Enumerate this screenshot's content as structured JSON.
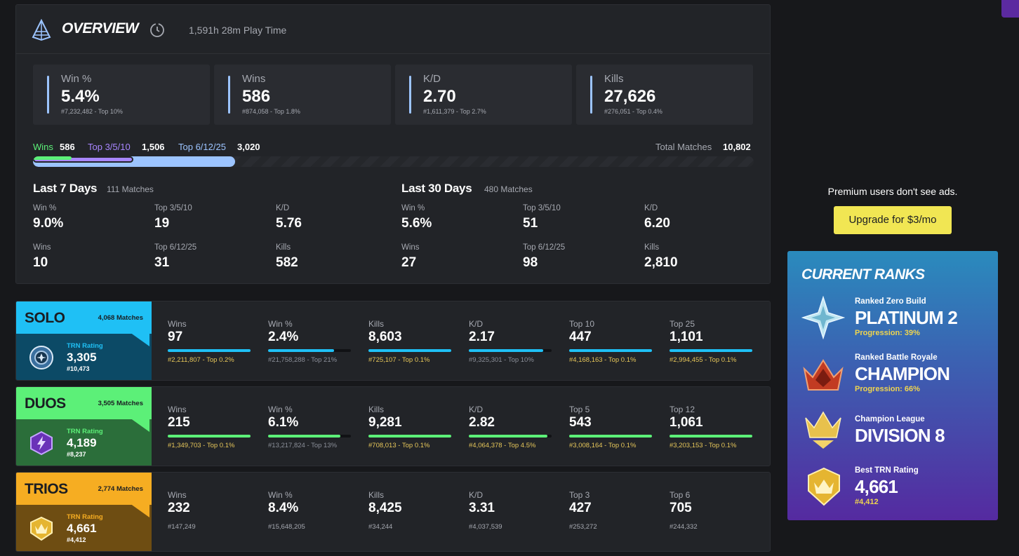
{
  "overview": {
    "title": "OVERVIEW",
    "play_time": "1,591h 28m Play Time",
    "stats": [
      {
        "label": "Win %",
        "value": "5.4%",
        "rank": "#7,232,482 - Top 10%",
        "gold": false
      },
      {
        "label": "Wins",
        "value": "586",
        "rank": "#874,058 - Top 1.8%",
        "gold": true
      },
      {
        "label": "K/D",
        "value": "2.70",
        "rank": "#1,611,379 - Top 2.7%",
        "gold": true
      },
      {
        "label": "Kills",
        "value": "27,626",
        "rank": "#276,051 - Top 0.4%",
        "gold": true
      }
    ],
    "placements": {
      "wins_label": "Wins",
      "wins_value": "586",
      "top3_label": "Top 3/5/10",
      "top3_value": "1,506",
      "top6_label": "Top 6/12/25",
      "top6_value": "3,020",
      "total_label": "Total Matches",
      "total_value": "10,802",
      "wins_fraction": 0.054,
      "top3_fraction": 0.139,
      "top6_fraction": 0.28
    },
    "last7": {
      "title": "Last 7 Days",
      "matches": "111 Matches",
      "stats": [
        {
          "label": "Win %",
          "value": "9.0%"
        },
        {
          "label": "Top 3/5/10",
          "value": "19"
        },
        {
          "label": "K/D",
          "value": "5.76"
        },
        {
          "label": "Wins",
          "value": "10"
        },
        {
          "label": "Top 6/12/25",
          "value": "31"
        },
        {
          "label": "Kills",
          "value": "582"
        }
      ]
    },
    "last30": {
      "title": "Last 30 Days",
      "matches": "480 Matches",
      "stats": [
        {
          "label": "Win %",
          "value": "5.6%"
        },
        {
          "label": "Top 3/5/10",
          "value": "51"
        },
        {
          "label": "K/D",
          "value": "6.20"
        },
        {
          "label": "Wins",
          "value": "27"
        },
        {
          "label": "Top 6/12/25",
          "value": "98"
        },
        {
          "label": "Kills",
          "value": "2,810"
        }
      ]
    }
  },
  "modes": [
    {
      "name": "SOLO",
      "matches": "4,068 Matches",
      "color": "#1fc0f5",
      "dark": "#0c4a66",
      "rating_label": "TRN Rating",
      "rating": "3,305",
      "rating_rank": "#10,473",
      "stats": [
        {
          "label": "Wins",
          "value": "97",
          "rank": "#2,211,807 - Top 0.2%",
          "fill": 1.0,
          "gold": true
        },
        {
          "label": "Win %",
          "value": "2.4%",
          "rank": "#21,758,288 - Top 21%",
          "fill": 0.8,
          "gold": false
        },
        {
          "label": "Kills",
          "value": "8,603",
          "rank": "#725,107 - Top 0.1%",
          "fill": 1.0,
          "gold": true
        },
        {
          "label": "K/D",
          "value": "2.17",
          "rank": "#9,325,301 - Top 10%",
          "fill": 0.9,
          "gold": false
        },
        {
          "label": "Top 10",
          "value": "447",
          "rank": "#4,168,163 - Top 0.1%",
          "fill": 1.0,
          "gold": true
        },
        {
          "label": "Top 25",
          "value": "1,101",
          "rank": "#2,994,455 - Top 0.1%",
          "fill": 1.0,
          "gold": true
        }
      ]
    },
    {
      "name": "DUOS",
      "matches": "3,505 Matches",
      "color": "#5cf078",
      "dark": "#2b6e3a",
      "rating_label": "TRN Rating",
      "rating": "4,189",
      "rating_rank": "#8,237",
      "stats": [
        {
          "label": "Wins",
          "value": "215",
          "rank": "#1,349,703 - Top 0.1%",
          "fill": 1.0,
          "gold": true
        },
        {
          "label": "Win %",
          "value": "6.1%",
          "rank": "#13,217,824 - Top 13%",
          "fill": 0.87,
          "gold": false
        },
        {
          "label": "Kills",
          "value": "9,281",
          "rank": "#708,013 - Top 0.1%",
          "fill": 1.0,
          "gold": true
        },
        {
          "label": "K/D",
          "value": "2.82",
          "rank": "#4,064,378 - Top 4.5%",
          "fill": 0.95,
          "gold": true
        },
        {
          "label": "Top 5",
          "value": "543",
          "rank": "#3,008,164 - Top 0.1%",
          "fill": 1.0,
          "gold": true
        },
        {
          "label": "Top 12",
          "value": "1,061",
          "rank": "#3,203,153 - Top 0.1%",
          "fill": 1.0,
          "gold": true
        }
      ]
    },
    {
      "name": "TRIOS",
      "matches": "2,774 Matches",
      "color": "#f6ad22",
      "dark": "#6e4d12",
      "rating_label": "TRN Rating",
      "rating": "4,661",
      "rating_rank": "#4,412",
      "stats": [
        {
          "label": "Wins",
          "value": "232",
          "rank": "#147,249"
        },
        {
          "label": "Win %",
          "value": "8.4%",
          "rank": "#15,648,205"
        },
        {
          "label": "Kills",
          "value": "8,425",
          "rank": "#34,244"
        },
        {
          "label": "K/D",
          "value": "3.31",
          "rank": "#4,037,539"
        },
        {
          "label": "Top 3",
          "value": "427",
          "rank": "#253,272"
        },
        {
          "label": "Top 6",
          "value": "705",
          "rank": "#244,332"
        }
      ]
    }
  ],
  "ad": {
    "text": "Premium users don't see ads.",
    "button": "Upgrade for $3/mo"
  },
  "ranks": {
    "title": "CURRENT RANKS",
    "items": [
      {
        "category": "Ranked Zero Build",
        "name": "PLATINUM 2",
        "progress": "Progression: 39%",
        "icon": "platinum-star-icon"
      },
      {
        "category": "Ranked Battle Royale",
        "name": "CHAMPION",
        "progress": "Progression: 66%",
        "icon": "champion-crown-icon"
      },
      {
        "category": "Champion League",
        "name": "DIVISION 8",
        "progress": "",
        "icon": "gold-crown-icon"
      },
      {
        "category": "Best TRN Rating",
        "name": "4,661",
        "progress": "#4,412",
        "icon": "gold-shield-crown-icon"
      }
    ]
  }
}
